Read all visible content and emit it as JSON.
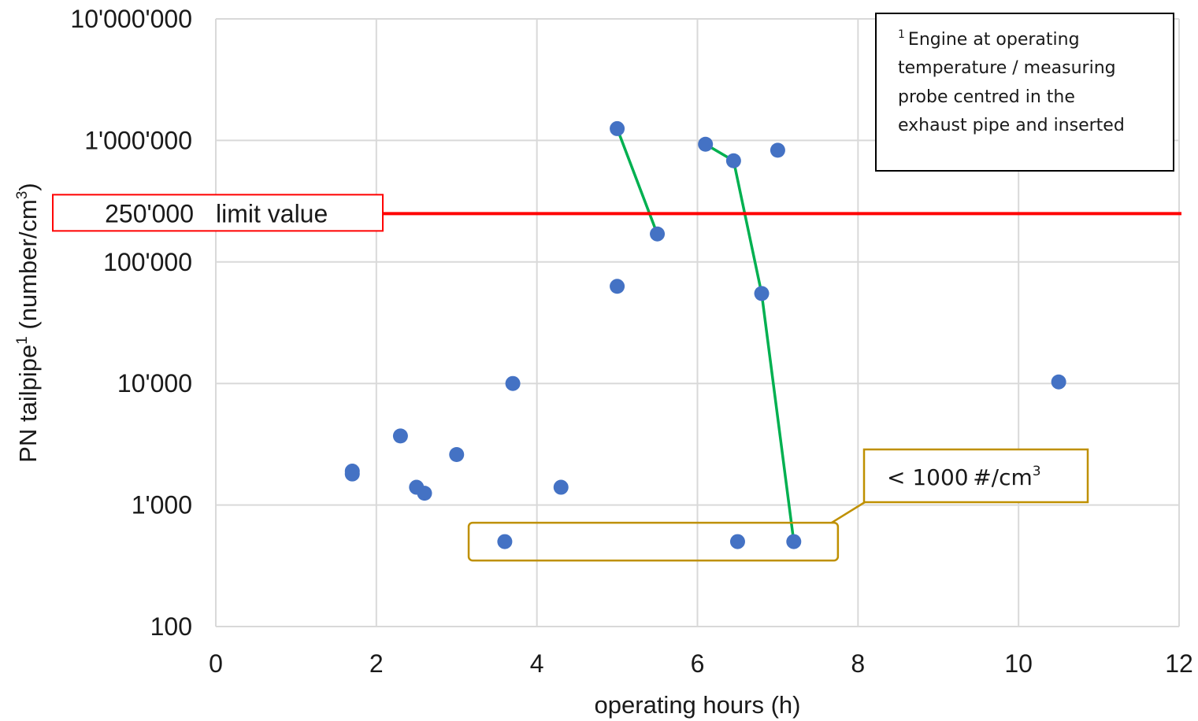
{
  "chart_data": {
    "type": "scatter",
    "title": "",
    "xlabel": "operating hours (h)",
    "ylabel": {
      "main": "PN tailpipe",
      "sup": "1",
      "unit_open": " (number/cm",
      "unit_sup": "3",
      "unit_close": ")"
    },
    "xlim": [
      0,
      12
    ],
    "ylim": [
      100,
      10000000
    ],
    "yscale": "log",
    "grid": true,
    "x_ticks": [
      {
        "value": 0,
        "label": "0"
      },
      {
        "value": 2,
        "label": "2"
      },
      {
        "value": 4,
        "label": "4"
      },
      {
        "value": 6,
        "label": "6"
      },
      {
        "value": 8,
        "label": "8"
      },
      {
        "value": 10,
        "label": "10"
      },
      {
        "value": 12,
        "label": "12"
      }
    ],
    "y_ticks": [
      {
        "value": 100,
        "label": "100"
      },
      {
        "value": 1000,
        "label": "1'000"
      },
      {
        "value": 10000,
        "label": "10'000"
      },
      {
        "value": 100000,
        "label": "100'000"
      },
      {
        "value": 1000000,
        "label": "1'000'000"
      },
      {
        "value": 10000000,
        "label": "10'000'000"
      }
    ],
    "colors": {
      "points": "#4472c4",
      "grid": "#d9d9d9",
      "limit_line": "#ff0000",
      "connector_lines": "#00b050",
      "callout_border": "#bf9000",
      "note_border": "#000000"
    },
    "points": [
      {
        "x": 1.7,
        "y": 1900
      },
      {
        "x": 1.7,
        "y": 1800
      },
      {
        "x": 2.3,
        "y": 3700
      },
      {
        "x": 2.5,
        "y": 1400
      },
      {
        "x": 2.6,
        "y": 1250
      },
      {
        "x": 3.0,
        "y": 2600
      },
      {
        "x": 3.6,
        "y": 500
      },
      {
        "x": 3.7,
        "y": 10000
      },
      {
        "x": 4.3,
        "y": 1400
      },
      {
        "x": 5.0,
        "y": 1250000
      },
      {
        "x": 5.0,
        "y": 63000
      },
      {
        "x": 5.5,
        "y": 170000
      },
      {
        "x": 6.1,
        "y": 930000
      },
      {
        "x": 6.45,
        "y": 680000
      },
      {
        "x": 6.5,
        "y": 500
      },
      {
        "x": 6.8,
        "y": 55000
      },
      {
        "x": 7.0,
        "y": 830000
      },
      {
        "x": 7.2,
        "y": 500
      },
      {
        "x": 10.5,
        "y": 10300
      }
    ],
    "connector_series": [
      [
        {
          "x": 5.0,
          "y": 1250000
        },
        {
          "x": 5.5,
          "y": 170000
        }
      ],
      [
        {
          "x": 6.1,
          "y": 930000
        },
        {
          "x": 6.45,
          "y": 680000
        },
        {
          "x": 6.8,
          "y": 55000
        },
        {
          "x": 7.2,
          "y": 500
        }
      ]
    ],
    "limit": {
      "value": 250000,
      "value_label": "250'000",
      "label": "limit value"
    },
    "callout": {
      "prefix": "< 1000 #/cm",
      "sup": "3",
      "x_range": [
        3.15,
        7.75
      ],
      "y_value": 500
    },
    "note": {
      "placement": "top-right",
      "sup": "1",
      "lines": [
        "Engine at operating",
        "temperature / measuring",
        "probe centred in the",
        "exhaust pipe and inserted"
      ]
    }
  }
}
